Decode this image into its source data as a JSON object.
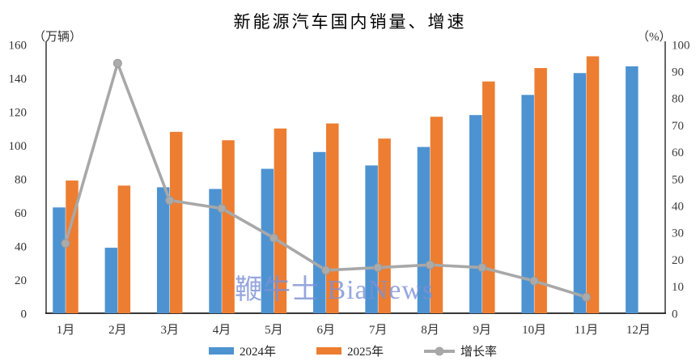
{
  "title": "新能源汽车国内销量、增速",
  "watermark": {
    "text": "鞭牛士 BiaNews",
    "color": "#7C90D6"
  },
  "chart_data": {
    "type": "bar+line",
    "title": "新能源汽车国内销量、增速",
    "categories": [
      "1月",
      "2月",
      "3月",
      "4月",
      "5月",
      "6月",
      "7月",
      "8月",
      "9月",
      "10月",
      "11月",
      "12月"
    ],
    "series": [
      {
        "name": "2024年",
        "type": "bar",
        "axis": "left",
        "color": "#4E93D1",
        "values": [
          63,
          39,
          75,
          74,
          86,
          96,
          88,
          99,
          118,
          130,
          143,
          147
        ]
      },
      {
        "name": "2025年",
        "type": "bar",
        "axis": "left",
        "color": "#ED7D31",
        "values": [
          79,
          76,
          108,
          103,
          110,
          113,
          104,
          117,
          138,
          146,
          153,
          null
        ]
      },
      {
        "name": "增长率",
        "type": "line",
        "axis": "right",
        "color": "#A8A8A8",
        "values": [
          26,
          93,
          42,
          39,
          28,
          16,
          17,
          18,
          17,
          12,
          6,
          null
        ]
      }
    ],
    "left_axis": {
      "unit": "（万辆）",
      "min": 0,
      "max": 160,
      "step": 20,
      "tick_labels": [
        "0",
        "20",
        "40",
        "60",
        "80",
        "100",
        "120",
        "140",
        "160"
      ]
    },
    "right_axis": {
      "unit": "（%）",
      "min": 0,
      "max": 100,
      "step": 10,
      "tick_labels": [
        "0",
        "10",
        "20",
        "30",
        "40",
        "50",
        "60",
        "70",
        "80",
        "90",
        "100"
      ]
    },
    "grid": false,
    "legend_position": "bottom"
  }
}
